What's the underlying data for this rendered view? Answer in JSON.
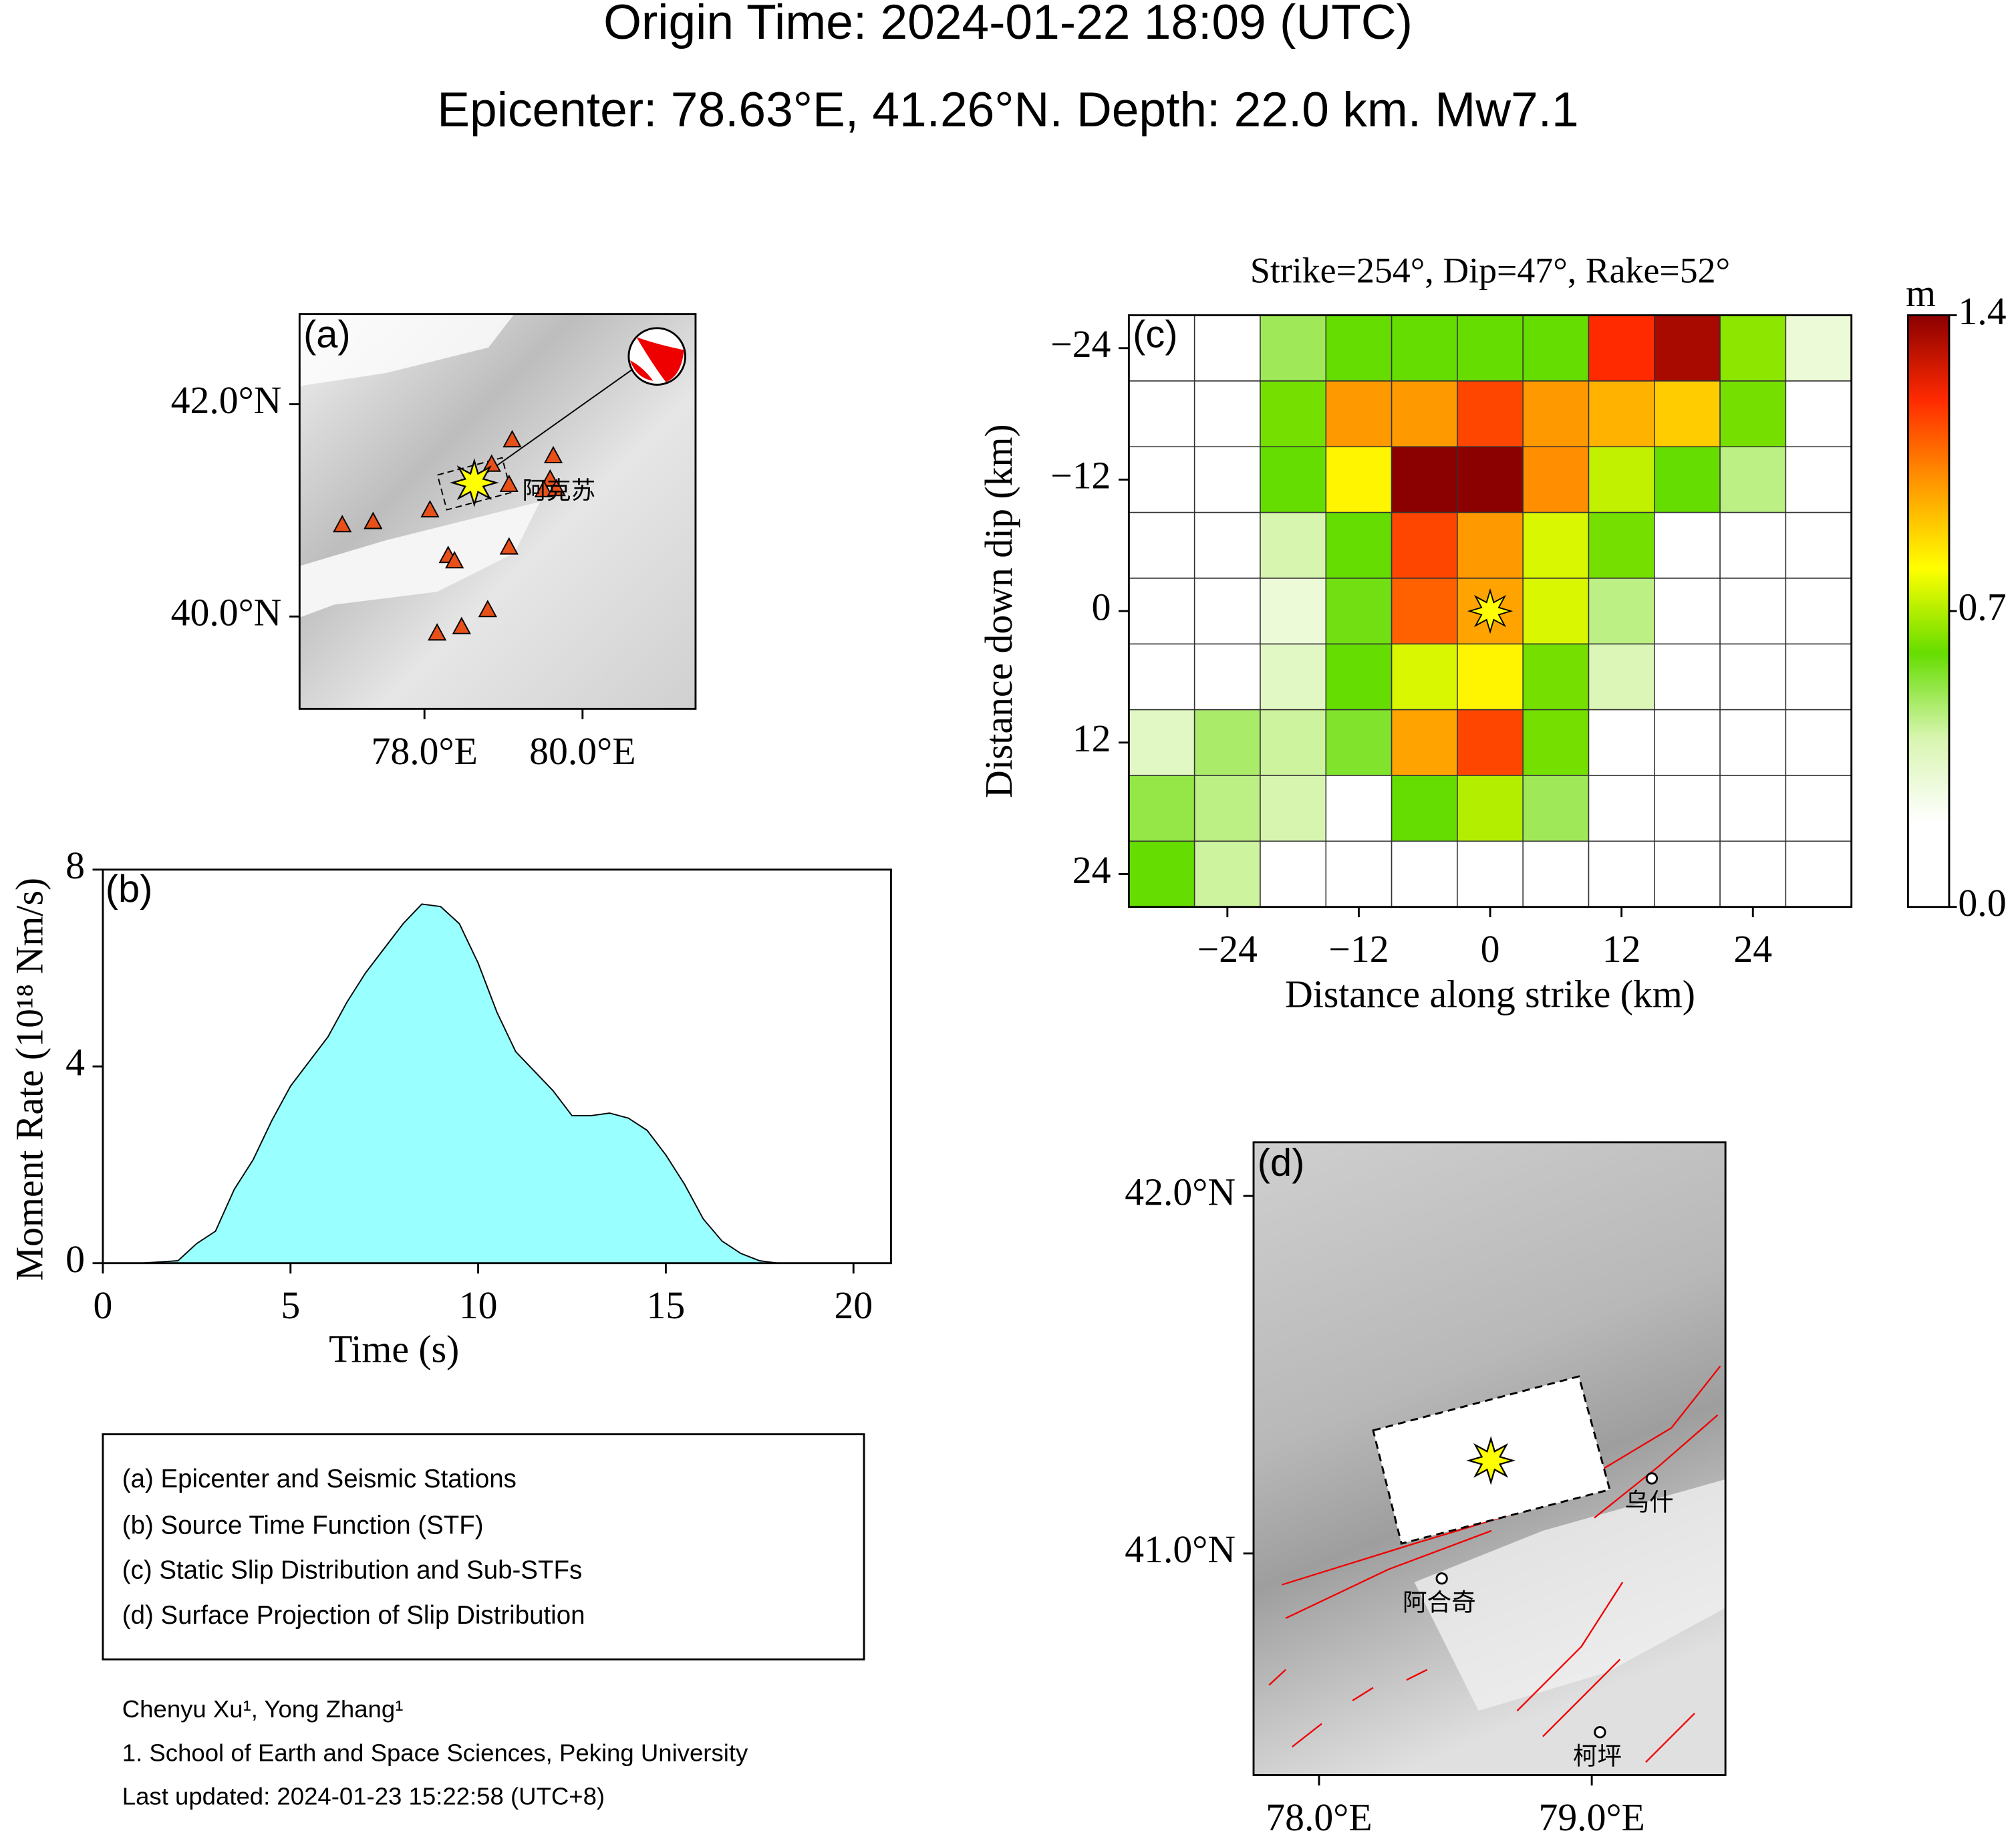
{
  "title": "Origin Time: 2024-01-22 18:09 (UTC)",
  "subtitle": "Epicenter: 78.63°E, 41.26°N. Depth: 22.0 km. Mw7.1",
  "chart_data": [
    {
      "type": "map",
      "panel": "(a)",
      "xlim": [
        76.42,
        81.43
      ],
      "ylim": [
        39.13,
        42.85
      ],
      "xticks": [
        {
          "value": 78,
          "label": "78.0°E"
        },
        {
          "value": 80,
          "label": "80.0°E"
        }
      ],
      "yticks": [
        {
          "value": 40,
          "label": "40.0°N"
        },
        {
          "value": 42,
          "label": "42.0°N"
        }
      ],
      "epicenter": {
        "x": 78.63,
        "y": 41.26
      },
      "stations": {
        "color": "#e8501a",
        "x": [
          76.96,
          77.35,
          78.07,
          79.11,
          78.85,
          79.63,
          79.07,
          79.59,
          79.51,
          79.67,
          78.3,
          78.38,
          79.07,
          78.8,
          78.47,
          78.16
        ],
        "y": [
          40.86,
          40.89,
          41.0,
          41.66,
          41.43,
          41.51,
          41.24,
          41.29,
          41.19,
          41.2,
          40.57,
          40.52,
          40.65,
          40.06,
          39.9,
          39.84
        ]
      },
      "cities": {
        "names": [
          "阿克苏"
        ],
        "x": [
          79.7
        ],
        "y": [
          41.17
        ]
      }
    },
    {
      "type": "area",
      "panel": "(b)",
      "color": "#99ffff",
      "x_label": "Time (s)",
      "y_label": "Moment Rate (10¹⁸ Nm/s)",
      "x": [
        0,
        1,
        2,
        2.5,
        3,
        3.5,
        4,
        4.5,
        5,
        5.5,
        6,
        6.5,
        7,
        7.5,
        8,
        8.5,
        9,
        9.5,
        10,
        10.5,
        11,
        11.5,
        12,
        12.5,
        13,
        13.5,
        14,
        14.5,
        15,
        15.5,
        16,
        16.5,
        17,
        17.5,
        18,
        19,
        20
      ],
      "values": [
        0,
        0,
        0.05,
        0.4,
        0.65,
        1.5,
        2.1,
        2.9,
        3.6,
        4.1,
        4.6,
        5.3,
        5.9,
        6.4,
        6.9,
        7.3,
        7.25,
        6.9,
        6.1,
        5.1,
        4.3,
        3.9,
        3.5,
        3.0,
        3.0,
        3.05,
        2.95,
        2.7,
        2.2,
        1.6,
        0.9,
        0.45,
        0.2,
        0.05,
        0,
        0,
        0
      ],
      "xlim": [
        0,
        21
      ],
      "ylim": [
        0,
        8
      ],
      "xticks": [
        0,
        5,
        10,
        15,
        20
      ],
      "yticks": [
        0,
        4,
        8
      ]
    },
    {
      "type": "heatmap",
      "panel": "(c)",
      "title": "Strike=254°, Dip=47°, Rake=52°",
      "x_label": "Distance along strike (km)",
      "y_label": "Distance down dip (km)",
      "x": [
        -30,
        -24,
        -18,
        -12,
        -6,
        0,
        6,
        12,
        18,
        24,
        30
      ],
      "y": [
        -24,
        -18,
        -12,
        -6,
        0,
        6,
        12,
        18,
        24
      ],
      "values": [
        [
          0,
          0,
          0.5,
          0.6,
          0.6,
          0.6,
          0.6,
          1.2,
          1.35,
          0.65,
          0.3
        ],
        [
          0,
          0,
          0.62,
          1.0,
          1.0,
          1.15,
          1.0,
          0.95,
          0.9,
          0.62,
          0
        ],
        [
          0,
          0,
          0.6,
          0.82,
          1.4,
          1.4,
          1.02,
          0.72,
          0.6,
          0.45,
          0
        ],
        [
          0,
          0,
          0.4,
          0.6,
          1.15,
          1.0,
          0.75,
          0.62,
          0,
          0,
          0
        ],
        [
          0,
          0,
          0.3,
          0.58,
          1.1,
          0.98,
          0.75,
          0.45,
          0,
          0,
          0
        ],
        [
          0,
          0.1,
          0.35,
          0.6,
          0.75,
          0.82,
          0.62,
          0.38,
          0,
          0,
          0
        ],
        [
          0.35,
          0.48,
          0.42,
          0.55,
          0.98,
          1.15,
          0.62,
          0,
          0,
          0,
          0
        ],
        [
          0.52,
          0.45,
          0.4,
          0,
          0.6,
          0.7,
          0.5,
          0,
          0,
          0,
          0
        ],
        [
          0.6,
          0.42,
          0,
          0,
          0,
          0,
          0,
          0,
          0,
          0,
          0
        ]
      ],
      "xlim": [
        -33,
        33
      ],
      "ylim": [
        27,
        -27
      ],
      "xticks": [
        {
          "value": -24,
          "label": "−24"
        },
        {
          "value": -12,
          "label": "−12"
        },
        0,
        12,
        24
      ],
      "yticks": [
        {
          "value": -24,
          "label": "−24"
        },
        {
          "value": -12,
          "label": "−12"
        },
        0,
        12,
        24
      ],
      "hypocenter": {
        "x": 0,
        "y": 0
      },
      "colorbar": {
        "label": "m",
        "lim": [
          0,
          1.4
        ],
        "ticks": [
          {
            "value": 0,
            "label": "0.0"
          },
          0.7,
          {
            "value": 1.4,
            "label": "1.4"
          }
        ],
        "colors": [
          "#ffffff",
          "#ffffff",
          "#d8f5b0",
          "#66dd00",
          "#ffff00",
          "#ff9900",
          "#ff2a00",
          "#8b0000"
        ]
      }
    },
    {
      "type": "map",
      "panel": "(d)",
      "xlim": [
        77.76,
        79.49
      ],
      "ylim": [
        40.38,
        42.15
      ],
      "xticks": [
        {
          "value": 78,
          "label": "78.0°E"
        },
        {
          "value": 79,
          "label": "79.0°E"
        }
      ],
      "yticks": [
        {
          "value": 41,
          "label": "41.0°N"
        },
        {
          "value": 42,
          "label": "42.0°N"
        }
      ],
      "epicenter": {
        "x": 78.63,
        "y": 41.26
      },
      "cities": {
        "names": [
          "乌什",
          "阿合奇",
          "柯坪"
        ],
        "x": [
          79.22,
          78.45,
          79.03
        ],
        "y": [
          41.21,
          40.93,
          40.5
        ]
      }
    }
  ],
  "legend_box": [
    "(a) Epicenter and Seismic Stations",
    "(b) Source Time Function (STF)",
    "(c) Static Slip Distribution and Sub-STFs",
    "(d) Surface Projection of Slip Distribution"
  ],
  "credits": [
    "Chenyu Xu¹, Yong Zhang¹",
    "1. School of Earth and Space Sciences, Peking University",
    "Last updated: 2024-01-23 15:22:58 (UTC+8)"
  ]
}
